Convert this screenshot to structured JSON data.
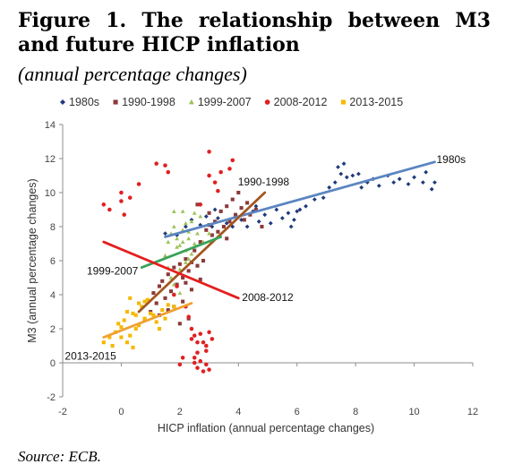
{
  "header": {
    "title": "Figure 1. The relationship between M3 and future HICP inflation",
    "subtitle": "(annual percentage changes)"
  },
  "footer": {
    "source": "Source: ECB."
  },
  "chart_data": {
    "type": "scatter",
    "xlabel": "HICP inflation (annual percentage changes)",
    "ylabel": "M3 (annual percentage changes)",
    "xlim": [
      -2,
      12
    ],
    "ylim": [
      -2,
      14
    ],
    "xticks": [
      -2,
      0,
      2,
      4,
      6,
      8,
      10,
      12
    ],
    "yticks": [
      -2,
      0,
      2,
      4,
      6,
      8,
      10,
      12,
      14
    ],
    "grid": false,
    "legend_position": "top",
    "series": [
      {
        "name": "1980s",
        "color": "#1f3a7a",
        "marker": "diamond",
        "points": [
          [
            1.5,
            7.6
          ],
          [
            1.9,
            7.5
          ],
          [
            2.2,
            8.0
          ],
          [
            2.4,
            8.4
          ],
          [
            2.7,
            8.1
          ],
          [
            2.9,
            8.6
          ],
          [
            3.1,
            8.0
          ],
          [
            3.3,
            8.5
          ],
          [
            3.6,
            8.2
          ],
          [
            3.8,
            8.0
          ],
          [
            3.9,
            8.6
          ],
          [
            4.1,
            8.4
          ],
          [
            4.3,
            8.0
          ],
          [
            4.5,
            8.9
          ],
          [
            4.7,
            8.3
          ],
          [
            4.9,
            8.7
          ],
          [
            5.1,
            8.2
          ],
          [
            5.3,
            9.0
          ],
          [
            5.5,
            8.5
          ],
          [
            5.7,
            8.8
          ],
          [
            5.9,
            8.4
          ],
          [
            3.2,
            9.0
          ],
          [
            4.6,
            9.2
          ],
          [
            6.1,
            9.0
          ],
          [
            6.3,
            9.2
          ],
          [
            6.6,
            9.6
          ],
          [
            6.9,
            9.7
          ],
          [
            7.1,
            10.3
          ],
          [
            7.3,
            10.6
          ],
          [
            7.4,
            11.5
          ],
          [
            7.5,
            11.1
          ],
          [
            7.6,
            11.7
          ],
          [
            7.7,
            10.9
          ],
          [
            7.9,
            11.0
          ],
          [
            8.1,
            11.1
          ],
          [
            8.2,
            10.3
          ],
          [
            8.4,
            10.6
          ],
          [
            8.6,
            10.8
          ],
          [
            8.8,
            10.4
          ],
          [
            9.1,
            11.0
          ],
          [
            9.3,
            10.6
          ],
          [
            9.5,
            10.8
          ],
          [
            9.8,
            10.5
          ],
          [
            10.0,
            10.9
          ],
          [
            10.3,
            10.6
          ],
          [
            10.4,
            11.2
          ],
          [
            10.6,
            10.2
          ],
          [
            10.7,
            10.6
          ],
          [
            6.0,
            8.9
          ],
          [
            5.8,
            8.0
          ]
        ]
      },
      {
        "name": "1990-1998",
        "color": "#8b3a3a",
        "marker": "square",
        "points": [
          [
            0.8,
            2.5
          ],
          [
            1.0,
            3.0
          ],
          [
            1.1,
            4.1
          ],
          [
            1.2,
            3.5
          ],
          [
            1.3,
            4.5
          ],
          [
            1.4,
            4.8
          ],
          [
            1.5,
            3.8
          ],
          [
            1.6,
            5.2
          ],
          [
            1.7,
            4.2
          ],
          [
            1.8,
            5.6
          ],
          [
            1.9,
            4.6
          ],
          [
            2.0,
            5.8
          ],
          [
            2.1,
            5.0
          ],
          [
            2.2,
            6.1
          ],
          [
            2.3,
            5.4
          ],
          [
            2.4,
            4.3
          ],
          [
            2.5,
            6.6
          ],
          [
            2.6,
            5.7
          ],
          [
            2.7,
            7.1
          ],
          [
            2.8,
            6.0
          ],
          [
            2.9,
            7.8
          ],
          [
            3.0,
            8.1
          ],
          [
            3.1,
            7.5
          ],
          [
            3.2,
            8.3
          ],
          [
            3.3,
            7.7
          ],
          [
            3.4,
            8.9
          ],
          [
            3.5,
            8.0
          ],
          [
            3.6,
            9.2
          ],
          [
            3.7,
            8.3
          ],
          [
            3.8,
            9.6
          ],
          [
            3.9,
            8.7
          ],
          [
            4.0,
            10.0
          ],
          [
            4.1,
            9.1
          ],
          [
            4.2,
            8.4
          ],
          [
            4.3,
            9.4
          ],
          [
            4.4,
            8.7
          ],
          [
            4.6,
            9.0
          ],
          [
            2.1,
            3.6
          ],
          [
            2.3,
            2.6
          ],
          [
            1.6,
            3.1
          ],
          [
            2.6,
            9.3
          ],
          [
            3.0,
            8.8
          ],
          [
            1.3,
            2.8
          ],
          [
            2.2,
            4.7
          ],
          [
            2.4,
            5.9
          ],
          [
            2.7,
            4.9
          ],
          [
            3.6,
            7.3
          ],
          [
            1.8,
            3.3
          ],
          [
            2.0,
            2.3
          ],
          [
            4.8,
            8.0
          ]
        ]
      },
      {
        "name": "1999-2007",
        "color": "#9dc35a",
        "marker": "triangle",
        "points": [
          [
            1.6,
            7.1
          ],
          [
            1.7,
            7.6
          ],
          [
            1.8,
            8.0
          ],
          [
            1.9,
            7.3
          ],
          [
            2.0,
            6.9
          ],
          [
            2.1,
            7.8
          ],
          [
            2.2,
            6.6
          ],
          [
            2.3,
            7.3
          ],
          [
            2.4,
            8.3
          ],
          [
            2.5,
            7.0
          ],
          [
            1.5,
            6.3
          ],
          [
            1.6,
            5.6
          ],
          [
            1.7,
            5.0
          ],
          [
            1.8,
            4.6
          ],
          [
            2.0,
            4.1
          ],
          [
            2.2,
            5.9
          ],
          [
            2.4,
            6.4
          ],
          [
            2.6,
            7.6
          ],
          [
            2.8,
            7.1
          ],
          [
            3.0,
            7.6
          ],
          [
            2.5,
            8.8
          ],
          [
            2.7,
            8.6
          ],
          [
            2.1,
            8.9
          ],
          [
            1.8,
            8.9
          ],
          [
            2.3,
            6.1
          ],
          [
            2.0,
            5.5
          ],
          [
            1.9,
            6.8
          ],
          [
            2.1,
            7.1
          ],
          [
            2.3,
            7.7
          ],
          [
            2.2,
            8.2
          ]
        ]
      },
      {
        "name": "2008-2012",
        "color": "#e02020",
        "marker": "circle",
        "points": [
          [
            -0.6,
            9.3
          ],
          [
            -0.4,
            9.0
          ],
          [
            0.0,
            10.0
          ],
          [
            0.1,
            8.7
          ],
          [
            0.3,
            9.7
          ],
          [
            0.6,
            10.5
          ],
          [
            1.2,
            11.7
          ],
          [
            1.5,
            11.6
          ],
          [
            1.6,
            11.2
          ],
          [
            0.0,
            9.5
          ],
          [
            3.0,
            12.4
          ],
          [
            3.4,
            11.2
          ],
          [
            3.7,
            11.4
          ],
          [
            3.8,
            11.9
          ],
          [
            2.7,
            9.3
          ],
          [
            3.2,
            10.6
          ],
          [
            3.3,
            10.1
          ],
          [
            3.0,
            11.0
          ],
          [
            2.2,
            3.3
          ],
          [
            2.3,
            2.7
          ],
          [
            2.4,
            2.0
          ],
          [
            2.5,
            1.6
          ],
          [
            2.6,
            1.2
          ],
          [
            2.7,
            1.7
          ],
          [
            2.8,
            1.2
          ],
          [
            2.9,
            0.7
          ],
          [
            3.0,
            1.8
          ],
          [
            3.1,
            1.4
          ],
          [
            2.5,
            0.0
          ],
          [
            2.6,
            -0.3
          ],
          [
            2.7,
            0.1
          ],
          [
            2.8,
            -0.5
          ],
          [
            2.9,
            -0.1
          ],
          [
            3.0,
            -0.4
          ],
          [
            2.0,
            -0.1
          ],
          [
            2.1,
            0.3
          ],
          [
            2.4,
            1.4
          ],
          [
            2.6,
            0.6
          ],
          [
            2.9,
            1.0
          ],
          [
            1.8,
            4.0
          ],
          [
            1.9,
            4.5
          ],
          [
            2.5,
            0.3
          ]
        ]
      },
      {
        "name": "2013-2015",
        "color": "#f5b800",
        "marker": "square",
        "points": [
          [
            -0.6,
            1.2
          ],
          [
            -0.4,
            1.5
          ],
          [
            -0.3,
            1.0
          ],
          [
            -0.2,
            1.8
          ],
          [
            0.0,
            2.1
          ],
          [
            0.1,
            2.5
          ],
          [
            0.2,
            1.2
          ],
          [
            0.3,
            1.6
          ],
          [
            0.4,
            0.9
          ],
          [
            0.5,
            2.8
          ],
          [
            0.6,
            3.5
          ],
          [
            0.7,
            3.3
          ],
          [
            0.8,
            2.6
          ],
          [
            0.9,
            3.7
          ],
          [
            1.0,
            2.9
          ],
          [
            1.2,
            2.4
          ],
          [
            1.4,
            3.1
          ],
          [
            1.5,
            2.6
          ],
          [
            1.6,
            3.4
          ],
          [
            1.8,
            3.3
          ],
          [
            0.3,
            3.8
          ],
          [
            0.4,
            2.9
          ],
          [
            0.5,
            2.0
          ],
          [
            0.8,
            3.6
          ],
          [
            1.1,
            2.8
          ],
          [
            -0.1,
            2.3
          ],
          [
            0.2,
            3.0
          ],
          [
            1.3,
            2.0
          ],
          [
            0.0,
            1.5
          ],
          [
            0.6,
            2.2
          ]
        ]
      }
    ],
    "trendlines": [
      {
        "label": "1980s",
        "color": "#5b85c0",
        "from": [
          1.5,
          7.4
        ],
        "to": [
          10.7,
          11.8
        ],
        "label_at": "end"
      },
      {
        "label": "1990-1998",
        "color": "#a3561f",
        "from": [
          0.6,
          3.0
        ],
        "to": [
          4.9,
          10.0
        ],
        "label_at": "end"
      },
      {
        "label": "1999-2007",
        "color": "#3aa35a",
        "from": [
          0.7,
          5.6
        ],
        "to": [
          3.4,
          7.4
        ],
        "label_at": "start"
      },
      {
        "label": "2008-2012",
        "color": "#e41e1e",
        "from": [
          -0.6,
          7.1
        ],
        "to": [
          4.0,
          3.8
        ],
        "label_at": "end"
      },
      {
        "label": "2013-2015",
        "color": "#f0a030",
        "from": [
          -0.6,
          1.5
        ],
        "to": [
          2.4,
          3.5
        ],
        "label_at": "start"
      }
    ]
  }
}
